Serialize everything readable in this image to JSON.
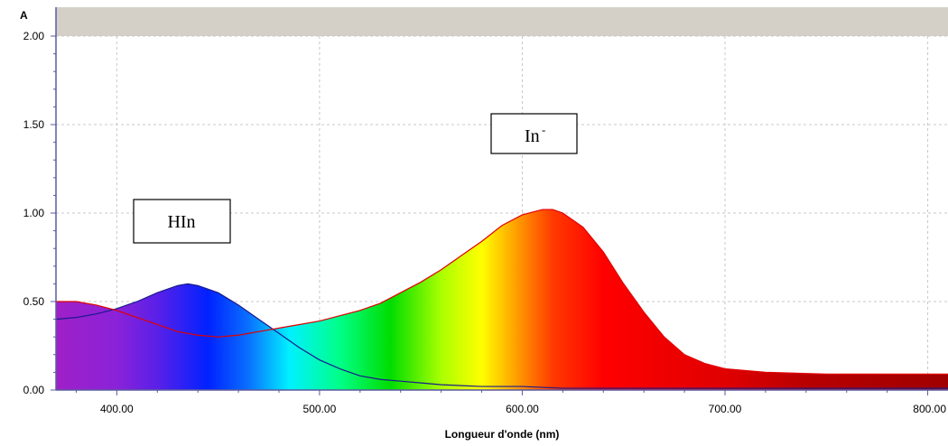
{
  "chart_data": {
    "type": "line",
    "title": "",
    "xlabel": "Longueur d'onde (nm)",
    "ylabel": "A",
    "xlim": [
      370,
      810
    ],
    "ylim": [
      0,
      2
    ],
    "x_ticks": [
      400,
      500,
      600,
      700,
      800
    ],
    "x_tick_labels": [
      "400.00",
      "500.00",
      "600.00",
      "700.00",
      "800.00"
    ],
    "y_ticks": [
      0,
      0.5,
      1,
      1.5,
      2
    ],
    "y_tick_labels": [
      "0.00",
      "0.50",
      "1.00",
      "1.50",
      "2.00"
    ],
    "grid": true,
    "fill": "visible-spectrum gradient under the In- curve",
    "series": [
      {
        "name": "HIn",
        "color": "#1a1a8c",
        "x": [
          370,
          380,
          390,
          400,
          410,
          420,
          430,
          435,
          440,
          450,
          460,
          470,
          480,
          490,
          500,
          510,
          520,
          530,
          540,
          550,
          560,
          580,
          600,
          620,
          650,
          700,
          750,
          800,
          810
        ],
        "y": [
          0.4,
          0.41,
          0.43,
          0.46,
          0.5,
          0.55,
          0.59,
          0.6,
          0.59,
          0.55,
          0.48,
          0.4,
          0.32,
          0.24,
          0.17,
          0.12,
          0.08,
          0.06,
          0.05,
          0.04,
          0.03,
          0.02,
          0.02,
          0.01,
          0.01,
          0.01,
          0.01,
          0.01,
          0.01
        ]
      },
      {
        "name": "In-",
        "color": "#e00000",
        "x": [
          370,
          380,
          390,
          400,
          410,
          420,
          430,
          440,
          450,
          460,
          470,
          480,
          490,
          500,
          510,
          520,
          530,
          540,
          550,
          560,
          570,
          580,
          590,
          600,
          610,
          615,
          620,
          630,
          640,
          650,
          660,
          670,
          680,
          690,
          700,
          720,
          750,
          780,
          800,
          810
        ],
        "y": [
          0.5,
          0.5,
          0.48,
          0.45,
          0.41,
          0.37,
          0.33,
          0.31,
          0.3,
          0.31,
          0.33,
          0.35,
          0.37,
          0.39,
          0.42,
          0.45,
          0.49,
          0.55,
          0.61,
          0.68,
          0.76,
          0.84,
          0.93,
          0.99,
          1.02,
          1.02,
          1.0,
          0.92,
          0.78,
          0.6,
          0.44,
          0.3,
          0.2,
          0.15,
          0.12,
          0.1,
          0.09,
          0.09,
          0.09,
          0.09
        ]
      }
    ],
    "annotations": [
      {
        "text": "HIn",
        "superscript": ""
      },
      {
        "text": "In",
        "superscript": "-"
      }
    ]
  }
}
